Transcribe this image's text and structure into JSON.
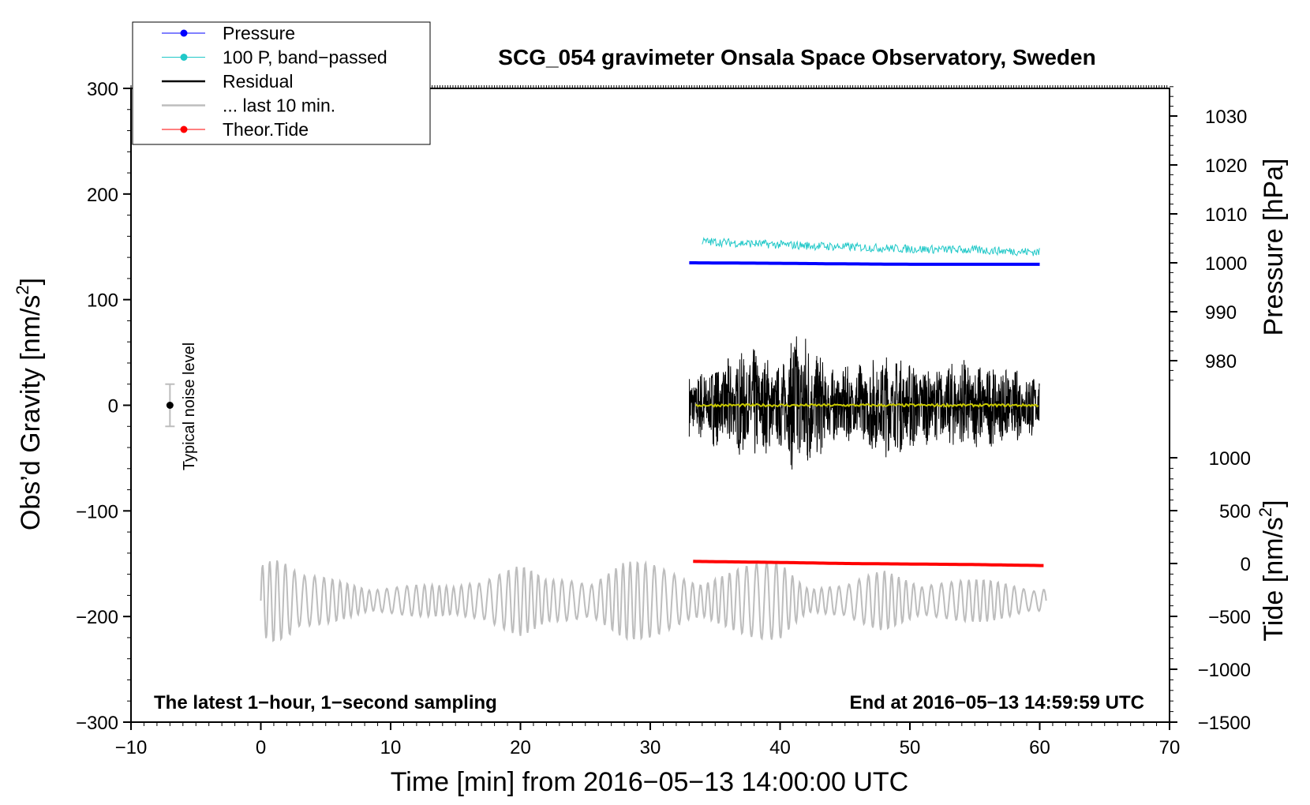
{
  "chart_data": {
    "type": "line",
    "title": "SCG_054 gravimeter Onsala Space Observatory, Sweden",
    "annotation_left": "The latest 1−hour, 1−second sampling",
    "annotation_right": "End at 2016−05−13 14:59:59 UTC",
    "noise_label": "Typical noise level",
    "x_axis": {
      "label": "Time [min] from 2016−05−13 14:00:00 UTC",
      "range": [
        -10,
        70
      ],
      "ticks": [
        -10,
        0,
        10,
        20,
        30,
        40,
        50,
        60,
        70
      ],
      "tick_labels": [
        "−10",
        "0",
        "10",
        "20",
        "30",
        "40",
        "50",
        "60",
        "70"
      ]
    },
    "y_left": {
      "label": "Obs’d Gravity [nm/s",
      "label_sup": "2",
      "label_end": "]",
      "range": [
        -300,
        300
      ],
      "ticks": [
        -300,
        -200,
        -100,
        0,
        100,
        200,
        300
      ],
      "tick_labels": [
        "−300",
        "−200",
        "−100",
        "0",
        "100",
        "200",
        "300"
      ]
    },
    "y_right_pressure": {
      "label": "Pressure [hPa]",
      "ticks": [
        980,
        990,
        1000,
        1010,
        1020,
        1030
      ],
      "tick_labels": [
        "980",
        "990",
        "1000",
        "1010",
        "1020",
        "1030"
      ]
    },
    "y_right_tide": {
      "label": "Tide [nm/s",
      "label_sup": "2",
      "label_end": "]",
      "ticks": [
        -1500,
        -1000,
        -500,
        0,
        500,
        1000
      ],
      "tick_labels": [
        "−1500",
        "−1000",
        "−500",
        "0",
        "500",
        "1000"
      ]
    },
    "legend": {
      "placement": "top-left",
      "entries": [
        {
          "label": "Pressure",
          "color": "#0000ff",
          "marker": true
        },
        {
          "label": "100 P, band−passed",
          "color": "#20c8c8",
          "marker": true
        },
        {
          "label": "Residual",
          "color": "#000000",
          "marker": false
        },
        {
          "label": "... last 10 min.",
          "color": "#bdbdbd",
          "marker": false
        },
        {
          "label": "Theor.Tide",
          "color": "#ff0000",
          "marker": true
        }
      ]
    },
    "series": [
      {
        "name": "Pressure",
        "color": "#0000ff",
        "unit": "hPa",
        "x": [
          33,
          40,
          44,
          50,
          60
        ],
        "y": [
          1000.0,
          999.9,
          999.8,
          999.7,
          999.7
        ]
      },
      {
        "name": "100 P, band−passed",
        "color": "#20c8c8",
        "unit": "nm/s2",
        "x": [
          34,
          40,
          45,
          50,
          55,
          60
        ],
        "y": [
          155,
          152,
          150,
          148,
          147,
          145
        ]
      },
      {
        "name": "Residual",
        "color": "#000000",
        "unit": "nm/s2",
        "x": [
          33,
          60
        ],
        "y_mean": 0,
        "amplitude_env": [
          [
            33,
            30
          ],
          [
            36,
            45
          ],
          [
            38,
            55
          ],
          [
            40,
            40
          ],
          [
            41.5,
            85
          ],
          [
            42.5,
            60
          ],
          [
            44,
            35
          ],
          [
            46,
            40
          ],
          [
            48,
            50
          ],
          [
            50,
            45
          ],
          [
            52,
            35
          ],
          [
            54,
            45
          ],
          [
            56,
            40
          ],
          [
            58,
            35
          ],
          [
            60,
            30
          ]
        ]
      },
      {
        "name": "Residual smoothed",
        "color": "#c8c800",
        "unit": "nm/s2",
        "x": [
          33.5,
          60
        ],
        "y": [
          0,
          0
        ]
      },
      {
        "name": "... last 10 min.",
        "color": "#bdbdbd",
        "unit": "nm/s2",
        "x": [
          0,
          60.5
        ],
        "y_mean": -185,
        "amplitude_env": [
          [
            0,
            60
          ],
          [
            1,
            55
          ],
          [
            3,
            25
          ],
          [
            10,
            15
          ],
          [
            15,
            15
          ],
          [
            17,
            30
          ],
          [
            20,
            35
          ],
          [
            22,
            20
          ],
          [
            25,
            25
          ],
          [
            28,
            40
          ],
          [
            30,
            35
          ],
          [
            33,
            25
          ],
          [
            36,
            30
          ],
          [
            38,
            35
          ],
          [
            40,
            40
          ],
          [
            42,
            20
          ],
          [
            45,
            15
          ],
          [
            48,
            30
          ],
          [
            50,
            25
          ],
          [
            53,
            20
          ],
          [
            56,
            20
          ],
          [
            60.5,
            15
          ]
        ]
      },
      {
        "name": "Theor.Tide",
        "color": "#ff0000",
        "unit": "nm/s2",
        "x": [
          33.3,
          40,
          45,
          50,
          55,
          60.5
        ],
        "y": [
          20,
          10,
          0,
          -5,
          -10,
          -20
        ]
      }
    ],
    "noise_bar": {
      "x": -7,
      "center": 0,
      "half_range": 20
    },
    "grid": false
  }
}
